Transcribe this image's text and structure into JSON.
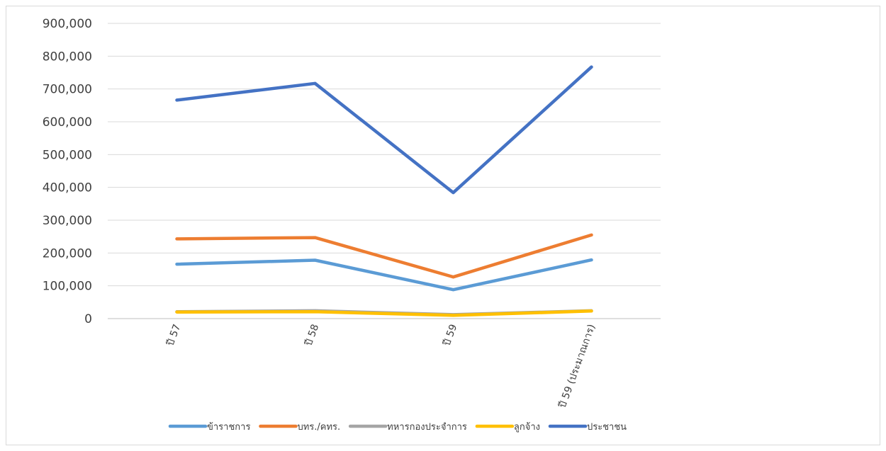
{
  "chart_data": {
    "type": "line",
    "title": "",
    "xlabel": "",
    "ylabel": "",
    "categories": [
      "ปี 57",
      "ปี 58",
      "ปี 59",
      "ปี 59 (ประมาณการ)"
    ],
    "ylim": [
      0,
      900000
    ],
    "yticks": [
      0,
      100000,
      200000,
      300000,
      400000,
      500000,
      600000,
      700000,
      800000,
      900000
    ],
    "ytick_labels": [
      "0",
      "100,000",
      "200,000",
      "300,000",
      "400,000",
      "500,000",
      "600,000",
      "700,000",
      "800,000",
      "900,000"
    ],
    "grid": true,
    "legend_position": "bottom",
    "series": [
      {
        "name": "ข้าราชการ",
        "color": "#5B9BD5",
        "values": [
          166000,
          178000,
          88000,
          179000
        ]
      },
      {
        "name": "บทร./คทร.",
        "color": "#ED7D31",
        "values": [
          243000,
          247000,
          127000,
          255000
        ]
      },
      {
        "name": "ทหารกองประจำการ",
        "color": "#A5A5A5",
        "values": [
          21000,
          24000,
          12000,
          24000
        ]
      },
      {
        "name": "ลูกจ้าง",
        "color": "#FFC000",
        "values": [
          20000,
          21000,
          10000,
          23000
        ]
      },
      {
        "name": "ประชาชน",
        "color": "#4472C4",
        "values": [
          666000,
          717000,
          384000,
          767000
        ]
      }
    ]
  }
}
